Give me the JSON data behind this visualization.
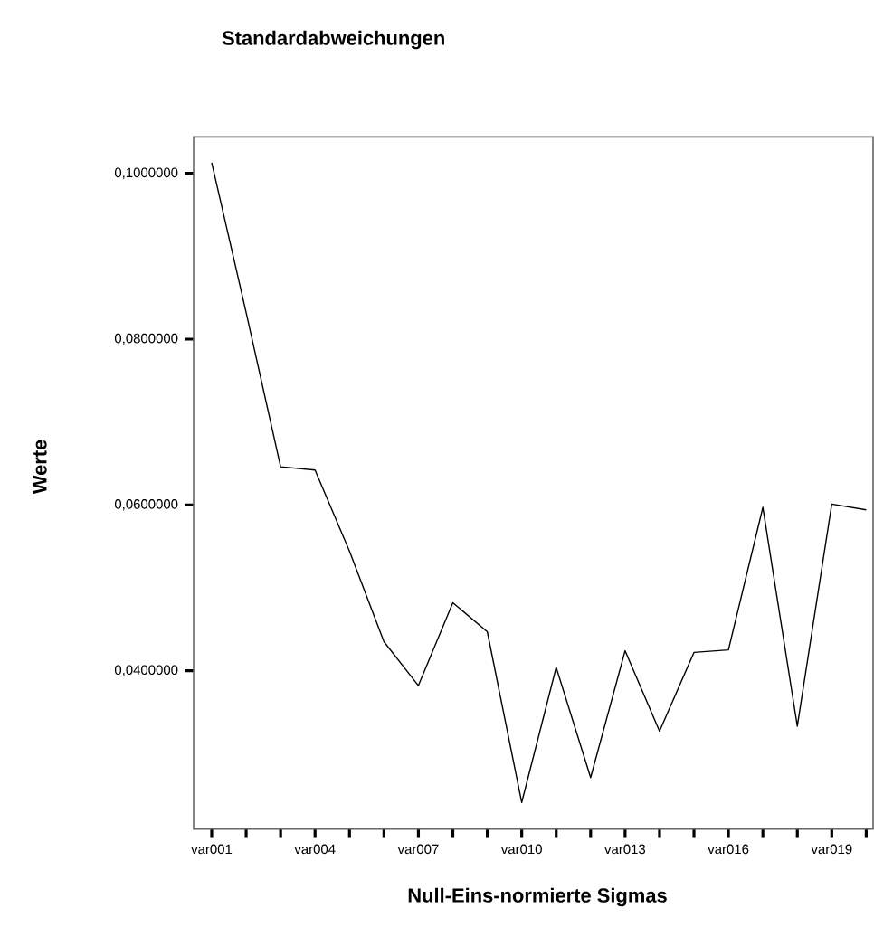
{
  "chart_data": {
    "type": "line",
    "title": "Standardabweichungen",
    "xlabel": "Null-Eins-normierte Sigmas",
    "ylabel": "Werte",
    "categories": [
      "var001",
      null,
      null,
      "var004",
      null,
      null,
      "var007",
      null,
      null,
      "var010",
      null,
      null,
      "var013",
      null,
      null,
      "var016",
      null,
      null,
      "var019",
      null
    ],
    "series": [
      {
        "color": "#000000",
        "values": [
          0.1013,
          0.0832,
          0.0646,
          0.0642,
          0.0544,
          0.0435,
          0.0382,
          0.0482,
          0.0447,
          0.0241,
          0.0404,
          0.0271,
          0.0424,
          0.0327,
          0.0422,
          0.0425,
          0.0597,
          0.0333,
          0.0601,
          0.0594
        ]
      }
    ],
    "ylim": [
      0.0209,
      0.1044
    ],
    "yticks": [
      {
        "value": 0.04,
        "label": "0,0400000"
      },
      {
        "value": 0.06,
        "label": "0,0600000"
      },
      {
        "value": 0.08,
        "label": "0,0800000"
      },
      {
        "value": 0.1,
        "label": "0,1000000"
      }
    ],
    "grid": false,
    "marker": "none",
    "line_style": "solid"
  }
}
